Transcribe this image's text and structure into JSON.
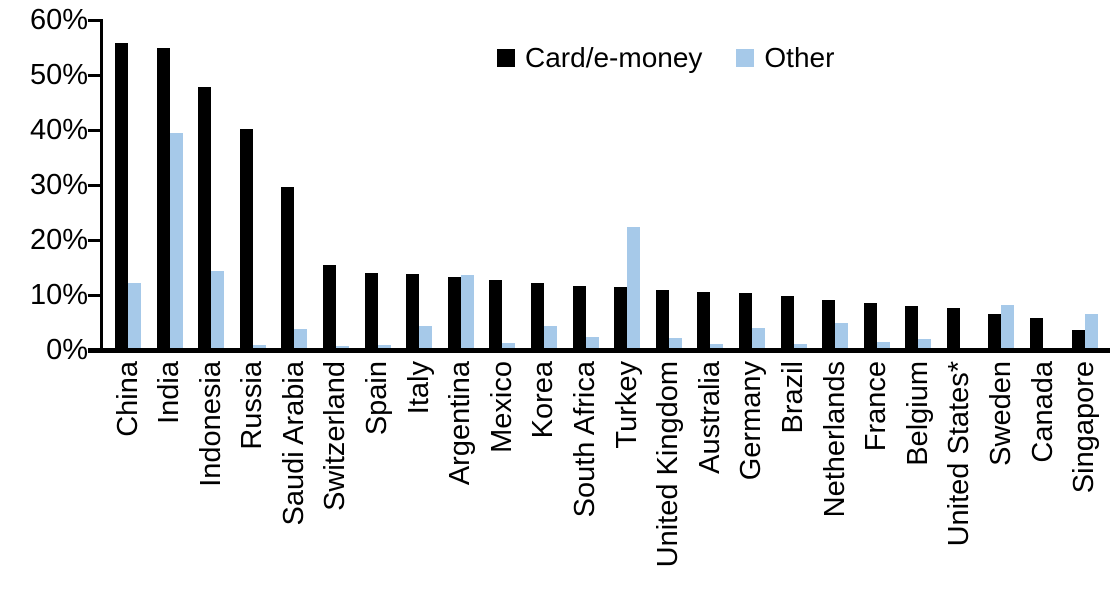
{
  "chart_data": {
    "type": "bar",
    "title": "",
    "xlabel": "",
    "ylabel": "",
    "ylim": [
      0,
      60
    ],
    "ytick_labels": [
      "0%",
      "10%",
      "20%",
      "30%",
      "40%",
      "50%",
      "60%"
    ],
    "grid": false,
    "legend_position": "top-center",
    "categories": [
      "China",
      "India",
      "Indonesia",
      "Russia",
      "Saudi Arabia",
      "Switzerland",
      "Spain",
      "Italy",
      "Argentina",
      "Mexico",
      "Korea",
      "South Africa",
      "Turkey",
      "United Kingdom",
      "Australia",
      "Germany",
      "Brazil",
      "Netherlands",
      "France",
      "Belgium",
      "United States*",
      "Sweden",
      "Canada",
      "Singapore"
    ],
    "series": [
      {
        "name": "Card/e-money",
        "color": "#000000",
        "values": [
          56.0,
          55.0,
          48.0,
          40.3,
          29.8,
          15.6,
          14.2,
          14.0,
          13.4,
          12.9,
          12.3,
          11.9,
          11.6,
          11.0,
          10.8,
          10.6,
          10.0,
          9.3,
          8.7,
          8.2,
          7.9,
          6.7,
          6.0,
          3.9
        ]
      },
      {
        "name": "Other",
        "color": "#A6C9E9",
        "values": [
          12.4,
          39.6,
          14.5,
          1.0,
          4.0,
          0.9,
          1.1,
          4.6,
          13.9,
          1.5,
          4.6,
          2.5,
          22.6,
          2.4,
          1.2,
          4.1,
          1.3,
          5.0,
          1.7,
          2.2,
          0.3,
          8.3,
          0.0,
          6.8
        ]
      }
    ]
  },
  "legend": {
    "items": [
      {
        "label": "Card/e-money",
        "color": "#000000"
      },
      {
        "label": "Other",
        "color": "#A6C9E9"
      }
    ]
  }
}
